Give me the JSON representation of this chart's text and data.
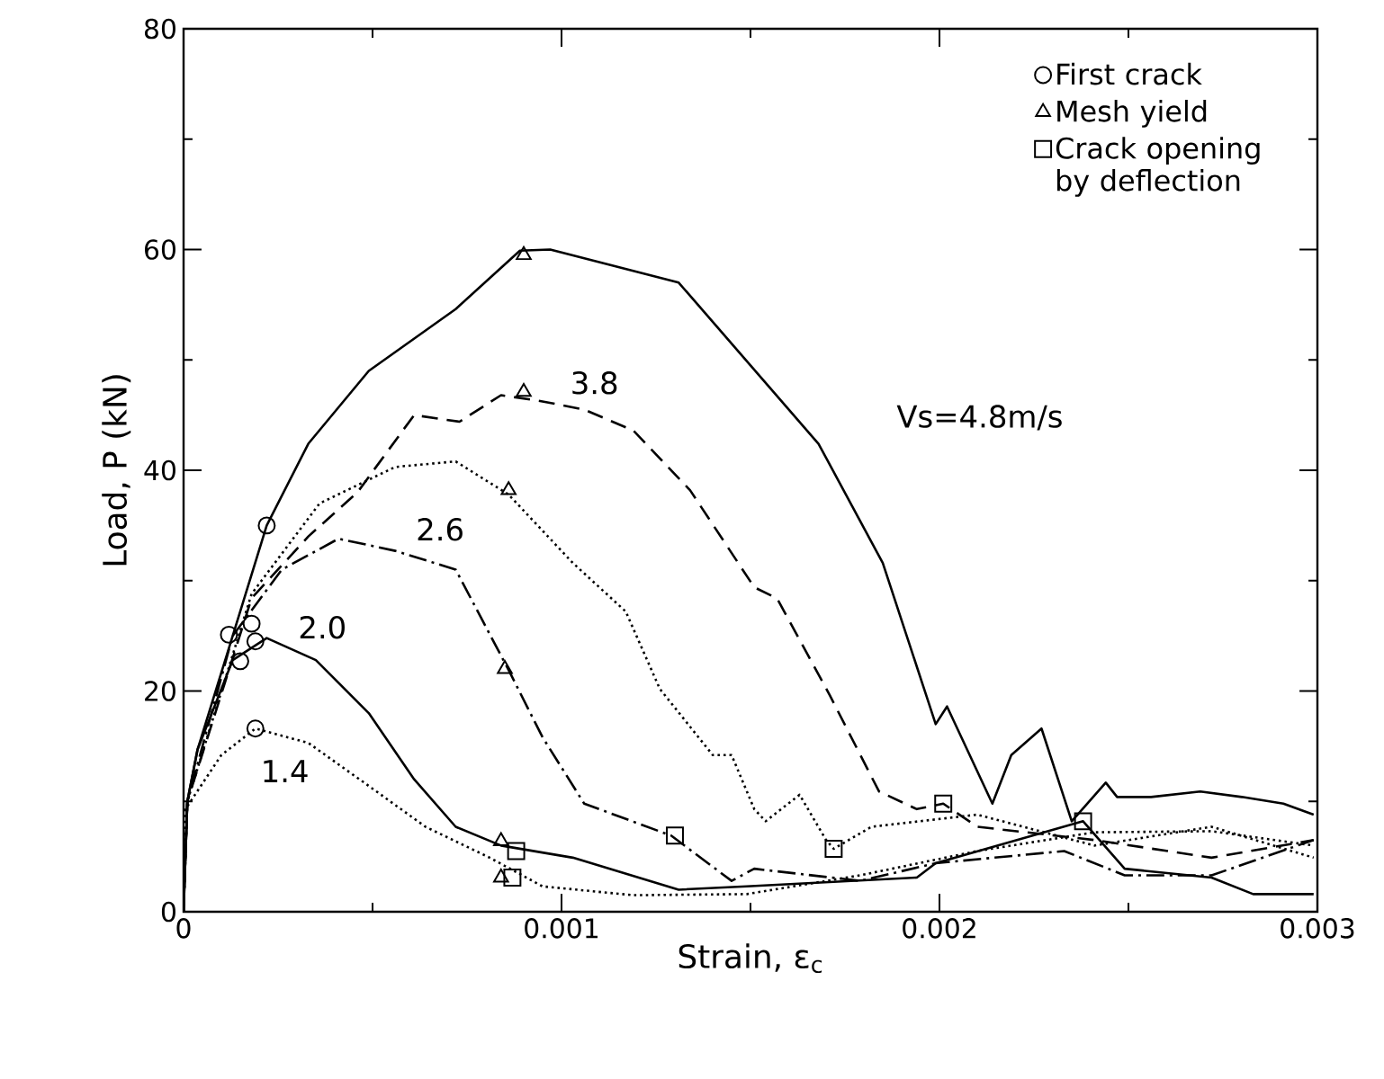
{
  "chart_data": {
    "type": "line",
    "xlabel": "Strain,  ε$_{c}$",
    "ylabel": "Load,  P  (kN)",
    "xlim": [
      0,
      0.003
    ],
    "ylim": [
      0,
      80
    ],
    "xticks": [
      0,
      0.001,
      0.002,
      0.003
    ],
    "yticks": [
      0,
      20,
      40,
      60,
      80
    ],
    "grid": false,
    "legend": "top right",
    "series": [
      {
        "name": "Vs=4.8m/s",
        "color": "#000000",
        "line_style": "solid",
        "marker": "none",
        "x": [
          0,
          1e-05,
          3.7e-05,
          0.00013,
          0.00022,
          0.00033,
          0.00049,
          0.00072,
          0.00089,
          0.00097,
          0.00131,
          0.0015,
          0.00168,
          0.00185,
          0.00199,
          0.00202,
          0.00214,
          0.00219,
          0.00227,
          0.00235,
          0.00244,
          0.00247,
          0.00256,
          0.00269,
          0.0028,
          0.00291,
          0.00299
        ],
        "values": [
          0,
          10,
          14.7,
          25,
          35,
          42.4,
          49,
          54.6,
          59.9,
          60,
          57,
          49.5,
          42.4,
          31.6,
          17,
          18.6,
          9.8,
          14.2,
          16.6,
          8.2,
          11.7,
          10.4,
          10.4,
          10.9,
          10.4,
          9.8,
          8.8
        ]
      },
      {
        "name": "3.8",
        "color": "#000000",
        "line_style": "dashed",
        "marker": "none",
        "x": [
          0,
          1e-05,
          0.00018,
          0.00033,
          0.00046,
          0.00061,
          0.00073,
          0.00084,
          0.00094,
          0.00106,
          0.00119,
          0.00134,
          0.00151,
          0.00157,
          0.00171,
          0.00184,
          0.00194,
          0.00201,
          0.0021,
          0.00241,
          0.00272,
          0.00299
        ],
        "values": [
          0,
          10,
          28.4,
          34,
          38,
          45,
          44.4,
          46.8,
          46.3,
          45.5,
          43.6,
          38.2,
          29.4,
          28.4,
          19.6,
          10.9,
          9.3,
          9.8,
          7.7,
          6.5,
          4.9,
          6.5
        ]
      },
      {
        "color": "#000000",
        "line_style": "dotted",
        "marker": "none",
        "x": [
          0,
          1e-05,
          0.00018,
          0.00036,
          0.00056,
          0.00072,
          0.00086,
          0.00103,
          0.00117,
          0.00126,
          0.0014,
          0.00145,
          0.00151,
          0.00154,
          0.00163,
          0.0017,
          0.00172,
          0.00182,
          0.0021,
          0.00241,
          0.00272,
          0.00299
        ],
        "values": [
          0,
          10,
          28.8,
          37,
          40.3,
          40.8,
          37.8,
          31.6,
          27.2,
          20.2,
          14.2,
          14.2,
          9.3,
          8.2,
          10.6,
          6.5,
          5.7,
          7.7,
          8.8,
          6,
          7.7,
          4.9
        ]
      },
      {
        "name": "2.6",
        "color": "#000000",
        "line_style": "dashdot",
        "marker": "none",
        "x": [
          0,
          1e-05,
          0.00013,
          0.00026,
          0.00041,
          0.00056,
          0.00072,
          0.00086,
          0.00095,
          0.00106,
          0.00129,
          0.00145,
          0.00151,
          0.00179,
          0.00199,
          0.00233,
          0.00249,
          0.00272,
          0.00299
        ],
        "values": [
          0,
          10,
          25,
          31,
          33.8,
          32.7,
          31,
          21.9,
          15.8,
          9.8,
          6.9,
          2.8,
          3.9,
          2.8,
          4.4,
          5.5,
          3.3,
          3.3,
          6.5
        ]
      },
      {
        "name": "2.0",
        "color": "#000000",
        "line_style": "solid",
        "marker": "none",
        "x": [
          0,
          1e-05,
          3.7e-05,
          0.00013,
          0.00022,
          0.00035,
          0.00049,
          0.00061,
          0.00072,
          0.00084,
          0.00103,
          0.00131,
          0.00149,
          0.00194,
          0.00199,
          0.00238,
          0.00249,
          0.00272,
          0.00283,
          0.00299
        ],
        "values": [
          0,
          10,
          14.7,
          22.8,
          24.8,
          22.8,
          18,
          12,
          7.7,
          6,
          4.9,
          2,
          2.3,
          3.1,
          4.4,
          8.2,
          3.9,
          3.1,
          1.6,
          1.6
        ]
      },
      {
        "name": "1.4",
        "color": "#000000",
        "line_style": "dotted",
        "marker": "none",
        "x": [
          0,
          5e-06,
          0.0001,
          0.00019,
          0.00033,
          0.00049,
          0.00064,
          0.00081,
          0.00095,
          0.00119,
          0.00149,
          0.00179,
          0.0021,
          0.00241,
          0.00272,
          0.00299
        ],
        "values": [
          0,
          9.3,
          14.2,
          16.6,
          15.3,
          11.4,
          7.7,
          4.9,
          2.3,
          1.5,
          1.6,
          3.3,
          5.5,
          7.2,
          7.3,
          6
        ]
      },
      {
        "name": "First crack",
        "type": "scatter",
        "color": "#000000",
        "marker": "circle",
        "x": [
          0.00022,
          0.00012,
          0.00018,
          0.00015,
          0.00019,
          0.00019
        ],
        "values": [
          35,
          25.1,
          26.1,
          22.7,
          24.5,
          16.6
        ]
      },
      {
        "name": "Mesh yield",
        "type": "scatter",
        "color": "#000000",
        "marker": "triangle",
        "x": [
          0.0009,
          0.0009,
          0.00086,
          0.00085,
          0.00084,
          0.00084
        ],
        "values": [
          59.5,
          47.1,
          38.2,
          22,
          6.4,
          3.1
        ]
      },
      {
        "name": "Crack opening by deflection",
        "type": "scatter",
        "color": "#000000",
        "marker": "square",
        "x": [
          0.00088,
          0.00087,
          0.0013,
          0.00172,
          0.00201,
          0.00238
        ],
        "values": [
          5.5,
          3.1,
          6.9,
          5.7,
          9.8,
          8.2
        ]
      }
    ]
  }
}
